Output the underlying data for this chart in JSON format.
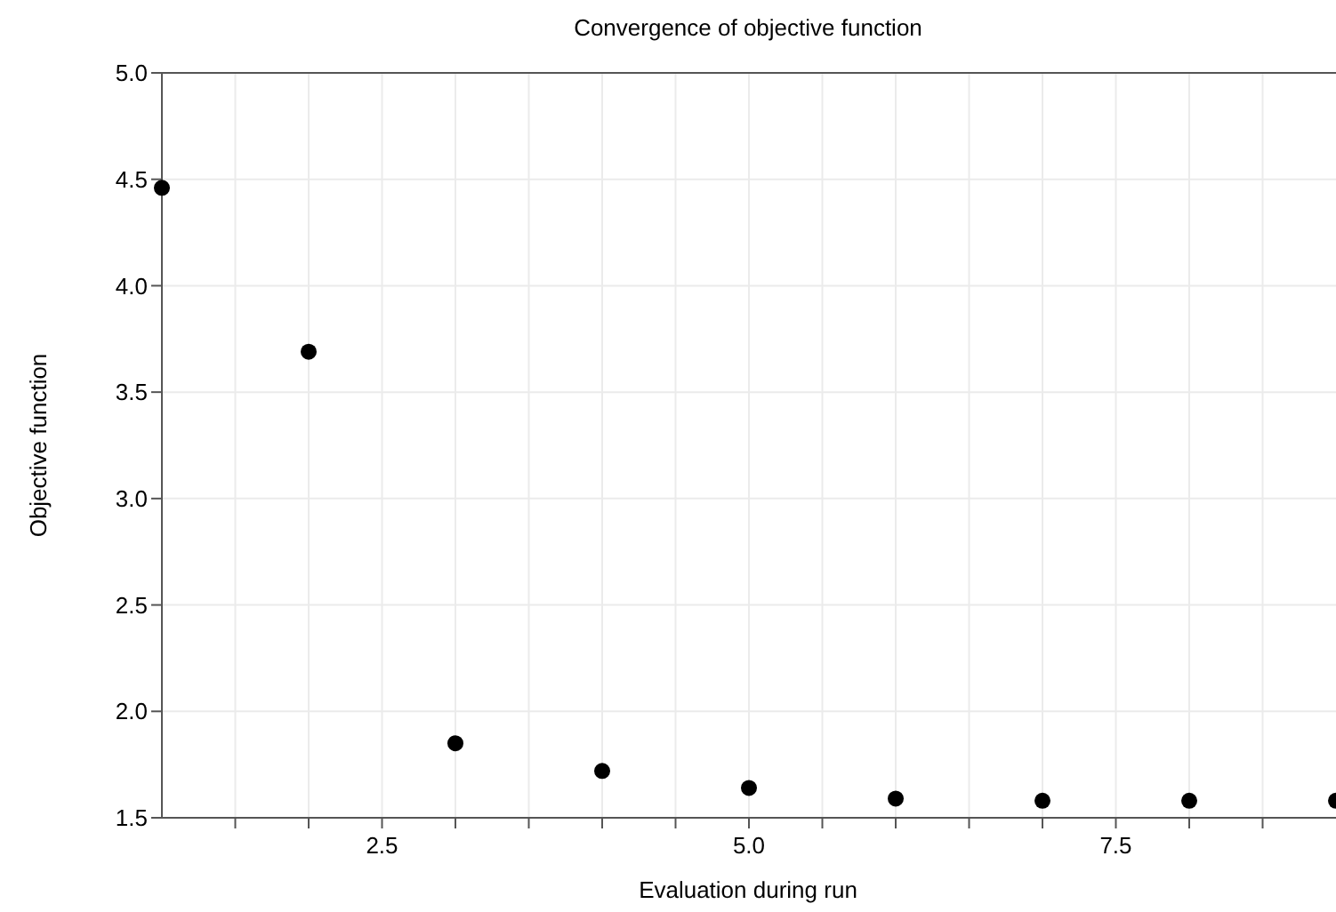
{
  "chart_data": {
    "type": "scatter",
    "title": "Convergence of objective function",
    "xlabel": "Evaluation during run",
    "ylabel": "Objective function",
    "x": [
      1,
      2,
      3,
      4,
      5,
      6,
      7,
      8,
      9
    ],
    "values": [
      4.46,
      3.69,
      1.85,
      1.72,
      1.64,
      1.59,
      1.58,
      1.58,
      1.58
    ],
    "color": "#000000",
    "marker": "circle",
    "xlim": [
      1,
      9
    ],
    "xticks": [
      {
        "value": 1.5,
        "label": null
      },
      {
        "value": 2,
        "label": null
      },
      {
        "value": 2.5,
        "label": "2.5"
      },
      {
        "value": 3,
        "label": null
      },
      {
        "value": 3.5,
        "label": null
      },
      {
        "value": 4,
        "label": null
      },
      {
        "value": 4.5,
        "label": null
      },
      {
        "value": 5,
        "label": "5.0"
      },
      {
        "value": 5.5,
        "label": null
      },
      {
        "value": 6,
        "label": null
      },
      {
        "value": 6.5,
        "label": null
      },
      {
        "value": 7,
        "label": null
      },
      {
        "value": 7.5,
        "label": "7.5"
      },
      {
        "value": 8,
        "label": null
      },
      {
        "value": 8.5,
        "label": null
      }
    ],
    "ylim": [
      1.5,
      5
    ],
    "yticks": [
      {
        "value": 1.5,
        "label": "1.5"
      },
      {
        "value": 2,
        "label": "2.0"
      },
      {
        "value": 2.5,
        "label": "2.5"
      },
      {
        "value": 3,
        "label": "3.0"
      },
      {
        "value": 3.5,
        "label": "3.5"
      },
      {
        "value": 4,
        "label": "4.0"
      },
      {
        "value": 4.5,
        "label": "4.5"
      },
      {
        "value": 5,
        "label": "5.0"
      }
    ],
    "grid": true
  }
}
